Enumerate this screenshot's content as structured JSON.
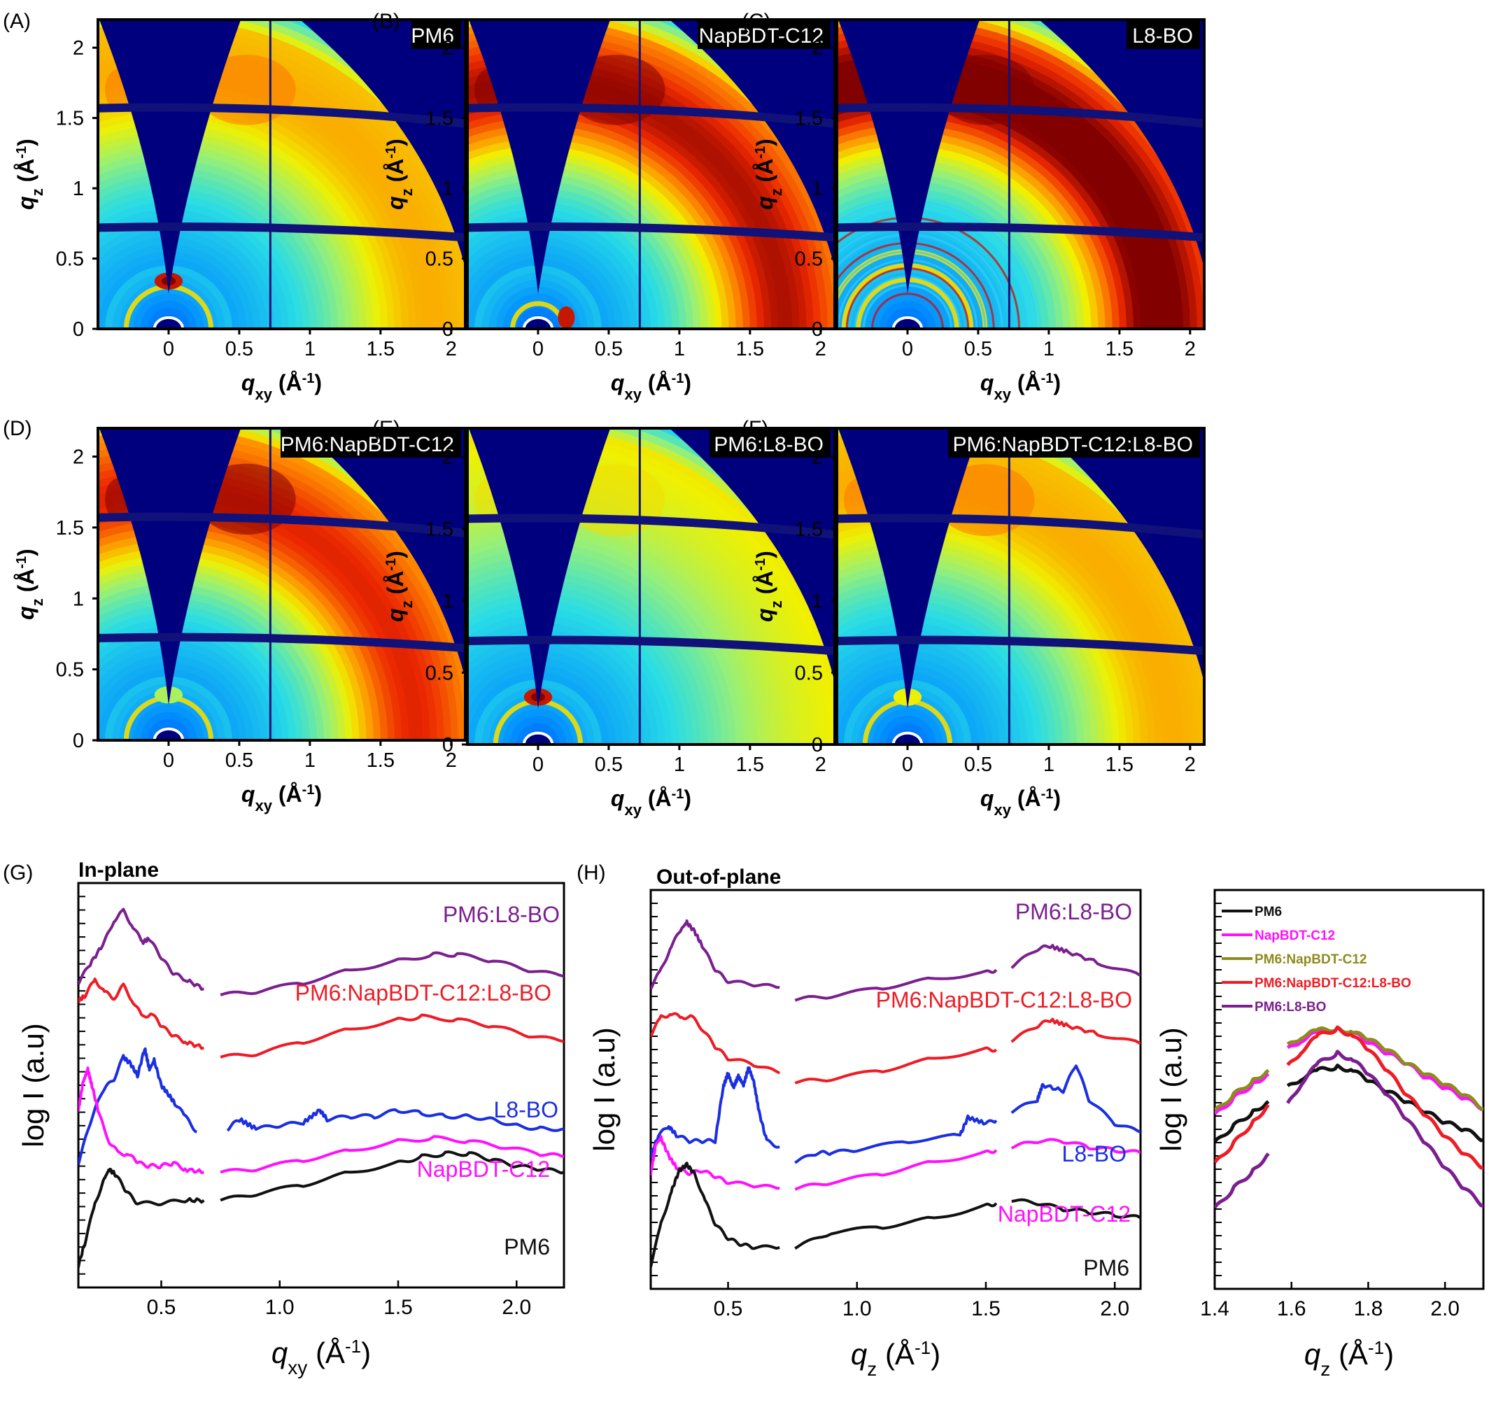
{
  "chart_data": [
    {
      "panel": "(A)",
      "type": "heatmap",
      "sample": "PM6",
      "xlabel": "qxy (Å-1)",
      "ylabel": "qz (Å-1)",
      "xlim": [
        -0.5,
        2.1
      ],
      "ylim": [
        0,
        2.2
      ],
      "xticks": [
        "0",
        "0.5",
        "1",
        "1.5",
        "2"
      ],
      "yticks": [
        "0",
        "0.5",
        "1",
        "1.5",
        "2"
      ],
      "features": {
        "inner_ring": 0.3,
        "outer_ring": 1.72,
        "outer_ring_intensity": 0.72,
        "lamellar_spot_qz": 0.34,
        "lamellar_spot_intensity": 1.0
      }
    },
    {
      "panel": "(B)",
      "type": "heatmap",
      "sample": "NapBDT-C12",
      "xlabel": "qxy (Å-1)",
      "ylabel": "qz (Å-1)",
      "xlim": [
        -0.5,
        2.1
      ],
      "ylim": [
        0,
        2.2
      ],
      "xticks": [
        "0",
        "0.5",
        "1",
        "1.5",
        "2"
      ],
      "yticks": [
        "0",
        "0.5",
        "1",
        "1.5",
        "2"
      ],
      "features": {
        "inner_ring": 0.18,
        "outer_ring": 1.7,
        "outer_ring_intensity": 0.92,
        "inplane_spot_qxy": 0.2,
        "inplane_spot_intensity": 1.0
      }
    },
    {
      "panel": "(C)",
      "type": "heatmap",
      "sample": "L8-BO",
      "xlabel": "qxy (Å-1)",
      "ylabel": "qz (Å-1)",
      "xlim": [
        -0.5,
        2.1
      ],
      "ylim": [
        0,
        2.2
      ],
      "xticks": [
        "0",
        "0.5",
        "1",
        "1.5",
        "2"
      ],
      "yticks": [
        "0",
        "0.5",
        "1",
        "1.5",
        "2"
      ],
      "features": {
        "inner_rings": [
          0.35,
          0.45,
          0.55
        ],
        "outer_ring": 1.75,
        "outer_ring_intensity": 0.98,
        "crystalline": true
      }
    },
    {
      "panel": "(D)",
      "type": "heatmap",
      "sample": "PM6:NapBDT-C12",
      "xlabel": "qxy (Å-1)",
      "ylabel": "qz (Å-1)",
      "xlim": [
        -0.5,
        2.1
      ],
      "ylim": [
        0,
        2.2
      ],
      "xticks": [
        "0",
        "0.5",
        "1",
        "1.5",
        "2"
      ],
      "yticks": [
        "0",
        "0.5",
        "1",
        "1.5",
        "2"
      ],
      "features": {
        "inner_ring": 0.3,
        "outer_ring": 1.7,
        "outer_ring_intensity": 0.88,
        "lamellar_spot_qz": 0.32,
        "lamellar_spot_intensity": 0.6
      }
    },
    {
      "panel": "(E)",
      "type": "heatmap",
      "sample": "PM6:L8-BO",
      "xlabel": "qxy (Å-1)",
      "ylabel": "qz (Å-1)",
      "xlim": [
        -0.5,
        2.1
      ],
      "ylim": [
        0,
        2.2
      ],
      "xticks": [
        "0",
        "0.5",
        "1",
        "1.5",
        "2"
      ],
      "yticks": [
        "0",
        "0.5",
        "1",
        "1.5",
        "2"
      ],
      "features": {
        "inner_ring": 0.3,
        "outer_ring": 1.72,
        "outer_ring_intensity": 0.6,
        "lamellar_spot_qz": 0.33,
        "lamellar_spot_intensity": 1.0
      }
    },
    {
      "panel": "(F)",
      "type": "heatmap",
      "sample": "PM6:NapBDT-C12:L8-BO",
      "xlabel": "qxy (Å-1)",
      "ylabel": "qz (Å-1)",
      "xlim": [
        -0.5,
        2.1
      ],
      "ylim": [
        0,
        2.2
      ],
      "xticks": [
        "0",
        "0.5",
        "1",
        "1.5",
        "2"
      ],
      "yticks": [
        "0",
        "0.5",
        "1",
        "1.5",
        "2"
      ],
      "features": {
        "inner_ring": 0.3,
        "outer_ring": 1.72,
        "outer_ring_intensity": 0.72,
        "lamellar_spot_qz": 0.33,
        "lamellar_spot_intensity": 0.7
      }
    },
    {
      "panel": "(G)",
      "type": "line",
      "title": "In-plane",
      "xlabel": "qxy (Å-1)",
      "ylabel": "log I (a.u)",
      "xlim": [
        0.15,
        2.2
      ],
      "xticks": [
        "0.5",
        "1.0",
        "1.5",
        "2.0"
      ],
      "gap": [
        0.68,
        0.74
      ],
      "series": [
        {
          "name": "PM6:L8-BO",
          "color": "#7b1f8f",
          "x": [
            0.15,
            0.2,
            0.26,
            0.3,
            0.34,
            0.38,
            0.42,
            0.45,
            0.5,
            0.55,
            0.6,
            0.68,
            0.75,
            0.9,
            1.1,
            1.3,
            1.5,
            1.65,
            1.75,
            1.9,
            2.05,
            2.2
          ],
          "y": [
            7.3,
            7.9,
            8.6,
            9.3,
            9.6,
            9.1,
            8.6,
            8.7,
            8.1,
            7.6,
            7.4,
            7.1,
            6.9,
            7.0,
            7.3,
            7.7,
            8.0,
            8.2,
            8.2,
            8.0,
            7.7,
            7.5
          ]
        },
        {
          "name": "PM6:NapBDT-C12:L8-BO",
          "color": "#ee1c25",
          "x": [
            0.15,
            0.18,
            0.22,
            0.26,
            0.3,
            0.34,
            0.38,
            0.42,
            0.46,
            0.5,
            0.55,
            0.6,
            0.68,
            0.75,
            0.9,
            1.1,
            1.3,
            1.5,
            1.6,
            1.75,
            1.9,
            2.05,
            2.2
          ],
          "y": [
            6.7,
            6.9,
            7.4,
            7.0,
            6.8,
            7.2,
            6.7,
            6.2,
            6.3,
            5.9,
            5.6,
            5.4,
            5.2,
            4.9,
            5.0,
            5.4,
            5.8,
            6.1,
            6.2,
            6.1,
            5.9,
            5.6,
            5.4
          ]
        },
        {
          "name": "L8-BO",
          "color": "#1a2fe0",
          "x": [
            0.15,
            0.2,
            0.25,
            0.3,
            0.34,
            0.37,
            0.4,
            0.43,
            0.45,
            0.47,
            0.5,
            0.53,
            0.56,
            0.6,
            0.65,
            0.7,
            0.78,
            0.83,
            0.9,
            1.0,
            1.1,
            1.17,
            1.2,
            1.3,
            1.4,
            1.5,
            1.6,
            1.7,
            1.8,
            1.9,
            2.0,
            2.1,
            2.2
          ],
          "y": [
            1.5,
            2.8,
            3.8,
            4.2,
            4.9,
            4.7,
            4.3,
            5.2,
            4.5,
            4.8,
            4.0,
            3.7,
            3.4,
            3.0,
            2.5,
            2.5,
            2.6,
            2.9,
            2.6,
            2.7,
            2.8,
            3.2,
            2.9,
            3.0,
            3.0,
            3.2,
            3.1,
            3.0,
            3.0,
            2.9,
            2.7,
            2.6,
            2.6
          ]
        },
        {
          "name": "NapBDT-C12",
          "color": "#ff10ff",
          "x": [
            0.15,
            0.17,
            0.19,
            0.21,
            0.24,
            0.28,
            0.32,
            0.36,
            0.4,
            0.45,
            0.5,
            0.55,
            0.6,
            0.68,
            0.75,
            0.9,
            1.1,
            1.3,
            1.5,
            1.65,
            1.8,
            1.95,
            2.1,
            2.2
          ],
          "y": [
            3.2,
            4.1,
            4.5,
            3.9,
            3.0,
            2.2,
            1.8,
            1.8,
            1.5,
            1.4,
            1.4,
            1.5,
            1.3,
            1.2,
            1.2,
            1.3,
            1.6,
            1.9,
            2.2,
            2.3,
            2.2,
            2.0,
            1.8,
            1.7
          ]
        },
        {
          "name": "PM6",
          "color": "#111111",
          "x": [
            0.15,
            0.18,
            0.22,
            0.26,
            0.28,
            0.31,
            0.35,
            0.4,
            0.5,
            0.6,
            0.68,
            0.75,
            0.9,
            1.1,
            1.3,
            1.5,
            1.6,
            1.7,
            1.8,
            1.9,
            2.0,
            2.1,
            2.2
          ],
          "y": [
            -1.8,
            -1.0,
            0.2,
            1.0,
            1.3,
            1.1,
            0.6,
            0.2,
            0.2,
            0.3,
            0.3,
            0.3,
            0.5,
            0.8,
            1.2,
            1.5,
            1.7,
            1.8,
            1.8,
            1.6,
            1.4,
            1.3,
            1.2
          ]
        }
      ]
    },
    {
      "panel": "(H)",
      "type": "line",
      "title": "Out-of-plane",
      "xlabel": "qz (Å-1)",
      "ylabel": "log I (a.u)",
      "xlim": [
        0.2,
        2.1
      ],
      "xticks": [
        "0.5",
        "1.0",
        "1.5",
        "2.0"
      ],
      "gaps": [
        [
          0.7,
          0.76
        ],
        [
          1.54,
          1.6
        ]
      ],
      "series": [
        {
          "name": "PM6:L8-BO",
          "color": "#7b1f8f",
          "x": [
            0.2,
            0.24,
            0.28,
            0.32,
            0.34,
            0.37,
            0.4,
            0.45,
            0.5,
            0.6,
            0.7,
            0.76,
            0.9,
            1.1,
            1.3,
            1.5,
            1.54,
            1.6,
            1.7,
            1.75,
            1.82,
            1.95,
            2.1
          ],
          "y": [
            7.2,
            7.8,
            8.6,
            9.2,
            9.4,
            9.1,
            8.6,
            7.8,
            7.4,
            7.3,
            7.2,
            6.8,
            6.9,
            7.2,
            7.5,
            7.7,
            7.8,
            7.9,
            8.5,
            8.6,
            8.4,
            8.0,
            7.6
          ]
        },
        {
          "name": "PM6:NapBDT-C12:L8-BO",
          "color": "#ee1c25",
          "x": [
            0.2,
            0.24,
            0.28,
            0.32,
            0.36,
            0.4,
            0.45,
            0.5,
            0.6,
            0.7,
            0.76,
            0.9,
            1.1,
            1.3,
            1.5,
            1.54,
            1.6,
            1.7,
            1.75,
            1.82,
            1.95,
            2.1
          ],
          "y": [
            5.6,
            6.2,
            6.3,
            6.2,
            6.2,
            5.8,
            5.2,
            4.8,
            4.6,
            4.3,
            4.0,
            4.1,
            4.4,
            4.8,
            5.1,
            5.1,
            5.4,
            5.9,
            6.1,
            5.9,
            5.6,
            5.3
          ]
        },
        {
          "name": "L8-BO",
          "color": "#1a2fe0",
          "x": [
            0.2,
            0.23,
            0.27,
            0.3,
            0.35,
            0.4,
            0.45,
            0.48,
            0.5,
            0.52,
            0.54,
            0.56,
            0.58,
            0.6,
            0.62,
            0.65,
            0.7,
            0.76,
            0.85,
            0.9,
            1.0,
            1.2,
            1.4,
            1.43,
            1.5,
            1.54,
            1.6,
            1.7,
            1.72,
            1.8,
            1.85,
            1.9,
            2.0,
            2.1
          ],
          "y": [
            1.5,
            2.2,
            2.5,
            2.2,
            2.0,
            2.0,
            2.0,
            3.8,
            4.3,
            3.8,
            4.2,
            3.9,
            4.5,
            4.0,
            3.0,
            2.0,
            1.8,
            1.3,
            1.6,
            1.6,
            1.7,
            2.0,
            2.2,
            2.8,
            2.6,
            2.7,
            3.0,
            3.4,
            3.9,
            3.7,
            4.6,
            3.4,
            2.6,
            2.3
          ]
        },
        {
          "name": "NapBDT-C12",
          "color": "#ff10ff",
          "x": [
            0.2,
            0.22,
            0.24,
            0.27,
            0.3,
            0.35,
            0.4,
            0.45,
            0.5,
            0.6,
            0.7,
            0.76,
            0.9,
            1.1,
            1.3,
            1.5,
            1.54,
            1.6,
            1.7,
            1.8,
            1.9,
            2.0,
            2.1
          ],
          "y": [
            0.9,
            1.9,
            2.1,
            1.5,
            1.1,
            0.9,
            1.0,
            0.8,
            0.6,
            0.5,
            0.4,
            0.4,
            0.6,
            0.9,
            1.3,
            1.6,
            1.7,
            1.8,
            2.0,
            2.0,
            1.8,
            1.7,
            1.6
          ]
        },
        {
          "name": "PM6",
          "color": "#111111",
          "x": [
            0.2,
            0.24,
            0.28,
            0.31,
            0.34,
            0.37,
            0.41,
            0.45,
            0.5,
            0.55,
            0.6,
            0.7,
            0.76,
            0.9,
            1.1,
            1.3,
            1.5,
            1.54,
            1.6,
            1.7,
            1.8,
            1.9,
            2.0,
            2.1
          ],
          "y": [
            -2.2,
            -0.8,
            0.3,
            1.0,
            1.2,
            0.9,
            0.0,
            -0.8,
            -1.3,
            -1.5,
            -1.6,
            -1.6,
            -1.6,
            -1.1,
            -0.9,
            -0.6,
            -0.2,
            -0.1,
            0.0,
            -0.1,
            -0.3,
            -0.4,
            -0.5,
            -0.6
          ]
        }
      ]
    },
    {
      "panel": "inset",
      "type": "line",
      "xlabel": "qz (Å-1)",
      "ylabel": "log I (a.u)",
      "xlim": [
        1.4,
        2.1
      ],
      "xticks": [
        "1.4",
        "1.6",
        "1.8",
        "2.0"
      ],
      "gap": [
        1.54,
        1.59
      ],
      "legend": {
        "position": "top",
        "entries": [
          "PM6",
          "NapBDT-C12",
          "PM6:NapBDT-C12",
          "PM6:NapBDT-C12:L8-BO",
          "PM6:L8-BO"
        ]
      },
      "series": [
        {
          "name": "PM6",
          "color": "#111111",
          "x": [
            1.4,
            1.45,
            1.5,
            1.54,
            1.59,
            1.63,
            1.67,
            1.72,
            1.76,
            1.8,
            1.85,
            1.9,
            1.95,
            2.0,
            2.05,
            2.1
          ],
          "y": [
            2.2,
            2.7,
            3.1,
            3.4,
            3.8,
            4.1,
            4.3,
            4.4,
            4.3,
            4.0,
            3.7,
            3.4,
            3.1,
            2.8,
            2.6,
            2.3
          ]
        },
        {
          "name": "NapBDT-C12",
          "color": "#ff10ff",
          "x": [
            1.4,
            1.45,
            1.5,
            1.54,
            1.59,
            1.63,
            1.67,
            1.72,
            1.76,
            1.8,
            1.85,
            1.9,
            1.95,
            2.0,
            2.05,
            2.1
          ],
          "y": [
            3.0,
            3.5,
            3.9,
            4.2,
            4.9,
            5.2,
            5.4,
            5.5,
            5.4,
            5.1,
            4.8,
            4.5,
            4.1,
            3.8,
            3.5,
            3.2
          ]
        },
        {
          "name": "PM6:NapBDT-C12",
          "color": "#8e8b1e",
          "x": [
            1.4,
            1.45,
            1.5,
            1.54,
            1.59,
            1.63,
            1.67,
            1.72,
            1.76,
            1.8,
            1.85,
            1.9,
            1.95,
            2.0,
            2.05,
            2.1
          ],
          "y": [
            3.1,
            3.6,
            4.0,
            4.3,
            5.0,
            5.3,
            5.45,
            5.5,
            5.4,
            5.2,
            4.9,
            4.5,
            4.2,
            3.9,
            3.6,
            3.2
          ]
        },
        {
          "name": "PM6:NapBDT-C12:L8-BO",
          "color": "#ee1c25",
          "x": [
            1.4,
            1.45,
            1.5,
            1.54,
            1.59,
            1.63,
            1.67,
            1.72,
            1.76,
            1.8,
            1.85,
            1.9,
            1.95,
            2.0,
            2.05,
            2.1
          ],
          "y": [
            1.6,
            2.2,
            2.8,
            3.3,
            4.4,
            4.9,
            5.3,
            5.5,
            5.3,
            4.9,
            4.3,
            3.6,
            3.0,
            2.4,
            1.9,
            1.5
          ]
        },
        {
          "name": "PM6:L8-BO",
          "color": "#7b1f8f",
          "x": [
            1.4,
            1.45,
            1.5,
            1.54,
            1.59,
            1.63,
            1.67,
            1.72,
            1.76,
            1.8,
            1.85,
            1.9,
            1.95,
            2.0,
            2.05,
            2.1
          ],
          "y": [
            0.3,
            0.9,
            1.4,
            1.9,
            3.3,
            4.0,
            4.5,
            4.8,
            4.6,
            4.2,
            3.6,
            2.9,
            2.2,
            1.5,
            0.9,
            0.4
          ]
        }
      ]
    }
  ]
}
